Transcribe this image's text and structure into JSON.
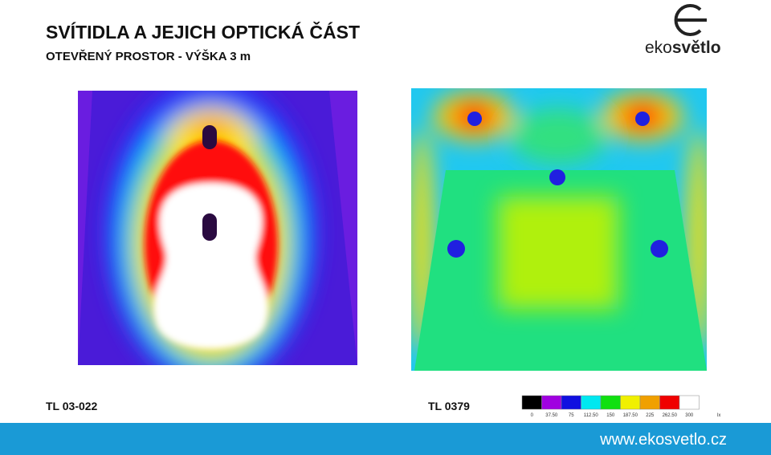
{
  "header": {
    "title": "SVÍTIDLA A JEJICH OPTICKÁ ČÁST",
    "subtitle": "OTEVŘENÝ PROSTOR - VÝŠKA 3 m"
  },
  "logo": {
    "text_left": "eko",
    "text_right": "světlo"
  },
  "panels": [
    {
      "label": "TL 03-022"
    },
    {
      "label": "TL 0379"
    }
  ],
  "legend": {
    "labels": [
      "0",
      "37.50",
      "75",
      "112.50",
      "150",
      "187.50",
      "225",
      "262.50",
      "300"
    ],
    "unit": "lx"
  },
  "footer": {
    "url": "www.ekosvetlo.cz"
  }
}
